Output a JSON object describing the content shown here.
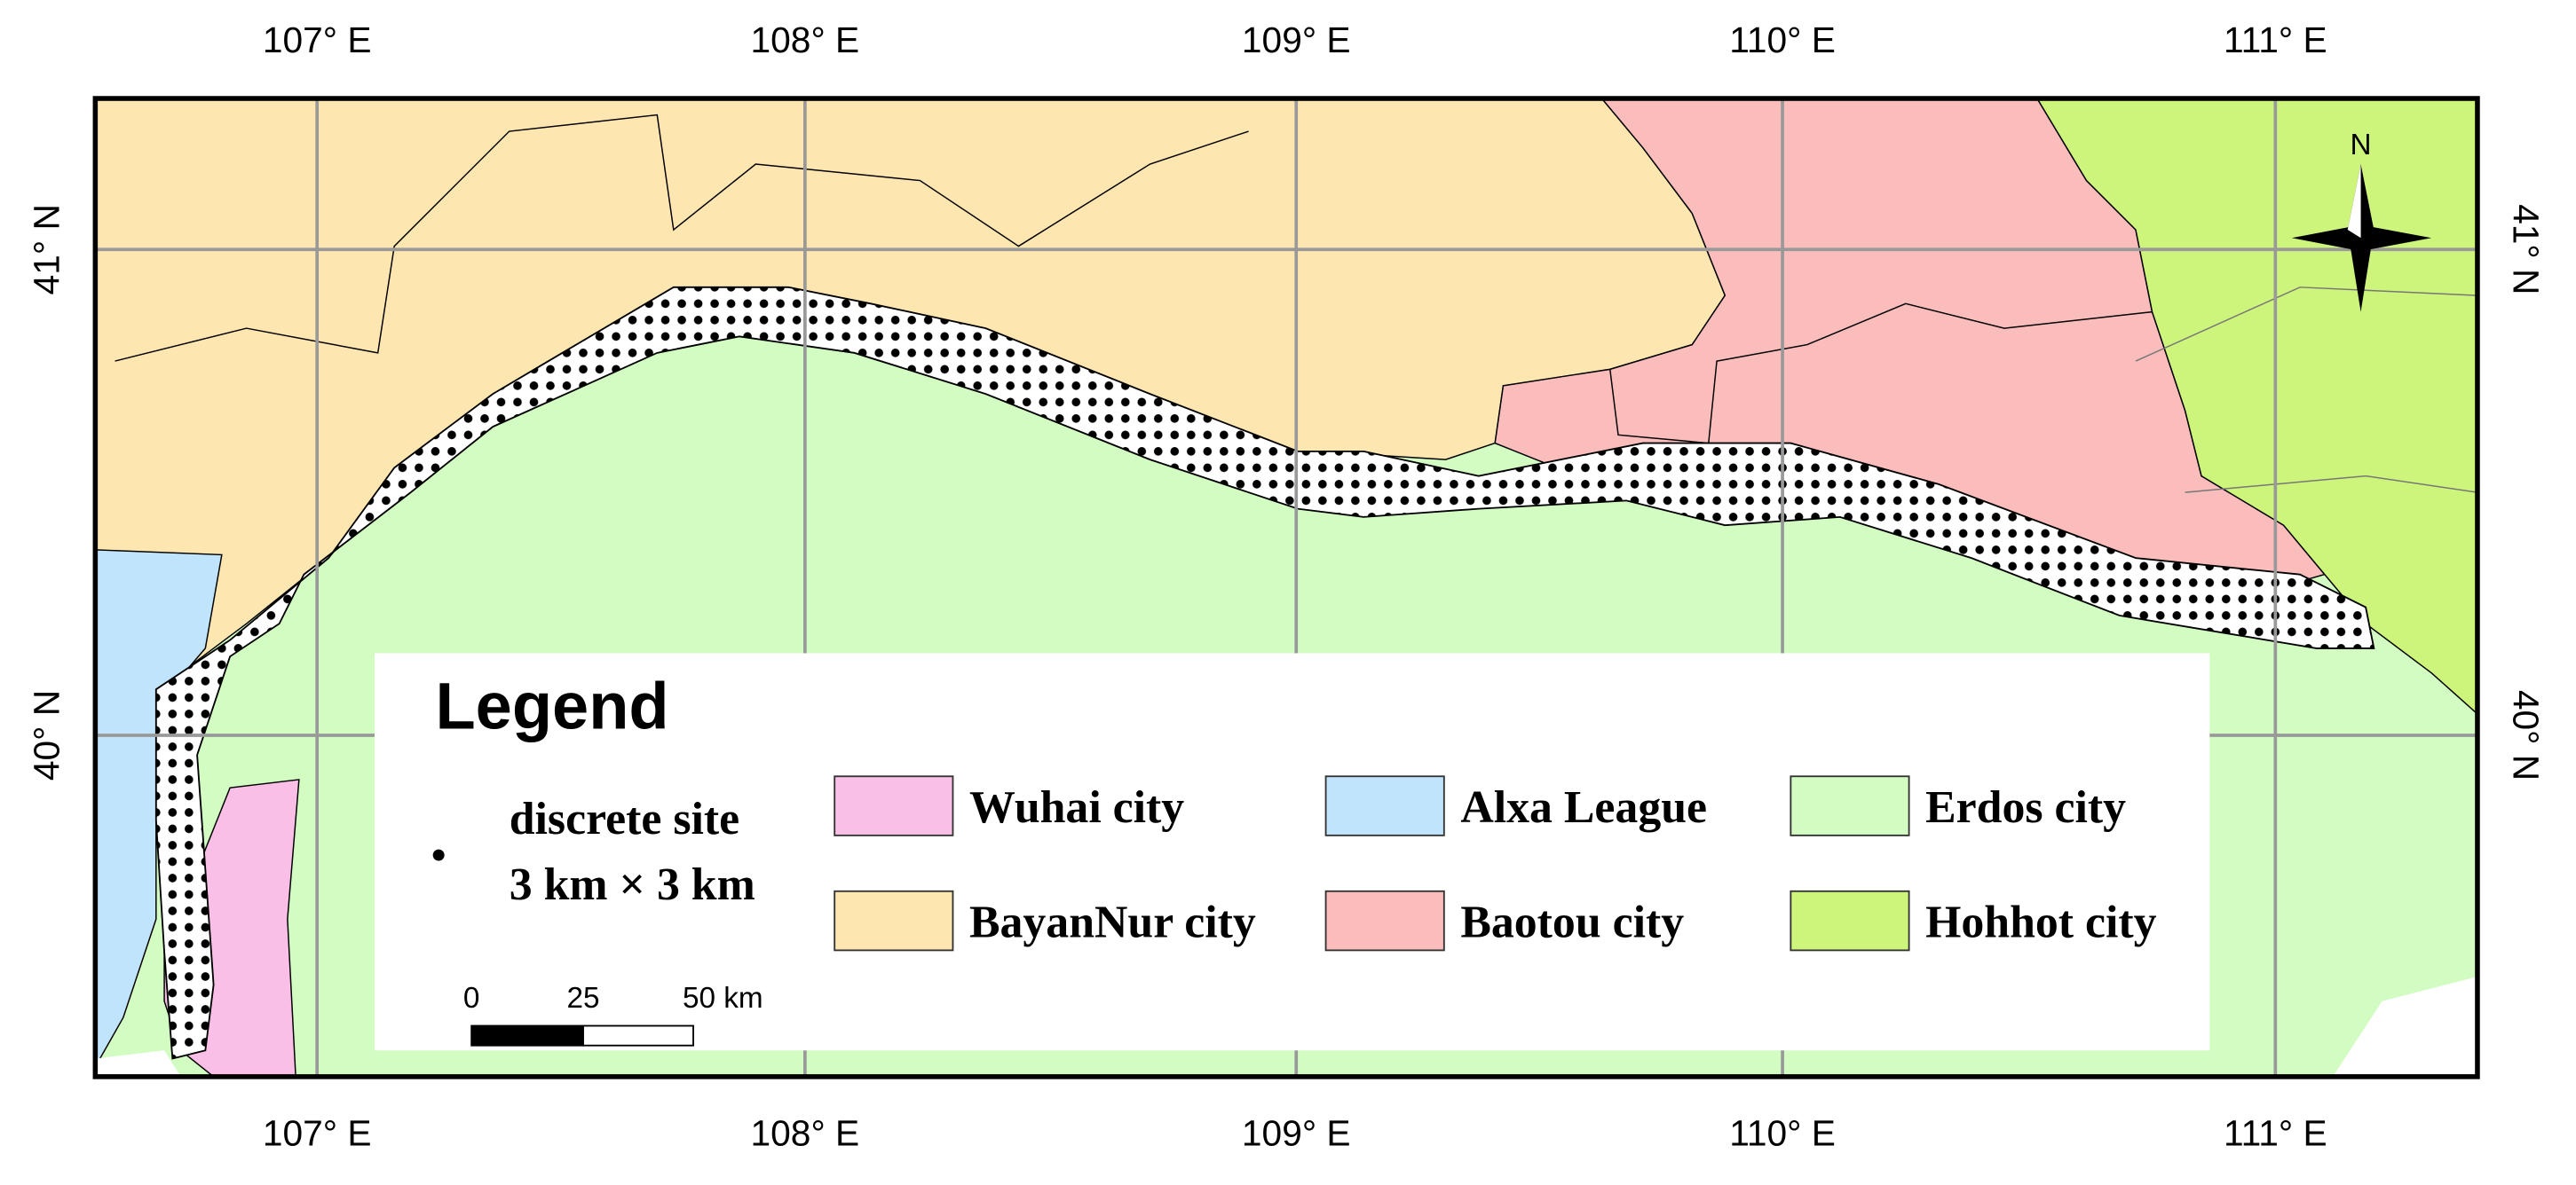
{
  "map": {
    "top_labels": [
      "107° E",
      "108° E",
      "109° E",
      "110° E",
      "111° E"
    ],
    "bottom_labels": [
      "107° E",
      "108° E",
      "109° E",
      "110° E",
      "111° E"
    ],
    "left_labels": [
      "41° N",
      "40° N"
    ],
    "right_labels": [
      "41° N",
      "40° N"
    ],
    "north": "N",
    "legend": {
      "title": "Legend",
      "site_label": [
        "discrete site",
        "3 km × 3 km"
      ],
      "items": [
        {
          "label": "Wuhai city",
          "color": "#f9bfe6"
        },
        {
          "label": "Alxa League",
          "color": "#c0e4fb"
        },
        {
          "label": "Erdos city",
          "color": "#d3fcc3"
        },
        {
          "label": "BayanNur city",
          "color": "#fde6b0"
        },
        {
          "label": "Baotou city",
          "color": "#fbbcbc"
        },
        {
          "label": "Hohhot city",
          "color": "#cef57b"
        }
      ]
    },
    "scale_bar": [
      "0",
      "25",
      "50 km"
    ]
  }
}
